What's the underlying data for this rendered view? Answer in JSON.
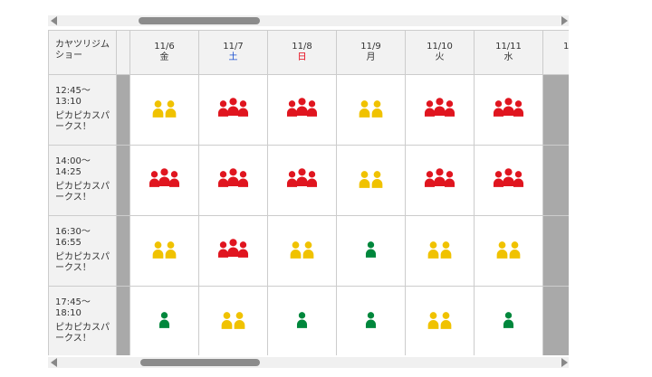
{
  "header": {
    "title": "カヤツリジムショー"
  },
  "days": [
    {
      "date": "11/6",
      "weekday": "金",
      "weekday_color": "#333333"
    },
    {
      "date": "11/7",
      "weekday": "土",
      "weekday_color": "#1a4fd0"
    },
    {
      "date": "11/8",
      "weekday": "日",
      "weekday_color": "#e60012"
    },
    {
      "date": "11/9",
      "weekday": "月",
      "weekday_color": "#333333"
    },
    {
      "date": "11/10",
      "weekday": "火",
      "weekday_color": "#333333"
    },
    {
      "date": "11/11",
      "weekday": "水",
      "weekday_color": "#333333"
    }
  ],
  "partial_day": "1",
  "icon_colors": {
    "1": "#00873c",
    "2": "#f0c200",
    "3": "#e0151f"
  },
  "rows": [
    {
      "time": [
        "12:45〜",
        "13:10"
      ],
      "show": "ピカピカスパークス！",
      "cells": [
        2,
        3,
        3,
        2,
        3,
        3
      ]
    },
    {
      "time": [
        "14:00〜",
        "14:25"
      ],
      "show": "ピカピカスパークス！",
      "cells": [
        3,
        3,
        3,
        2,
        3,
        3
      ]
    },
    {
      "time": [
        "16:30〜",
        "16:55"
      ],
      "show": "ピカピカスパークス！",
      "cells": [
        2,
        3,
        2,
        1,
        2,
        2
      ]
    },
    {
      "time": [
        "17:45〜",
        "18:10"
      ],
      "show": "ピカピカスパークス！",
      "cells": [
        1,
        2,
        1,
        1,
        2,
        1
      ]
    }
  ]
}
